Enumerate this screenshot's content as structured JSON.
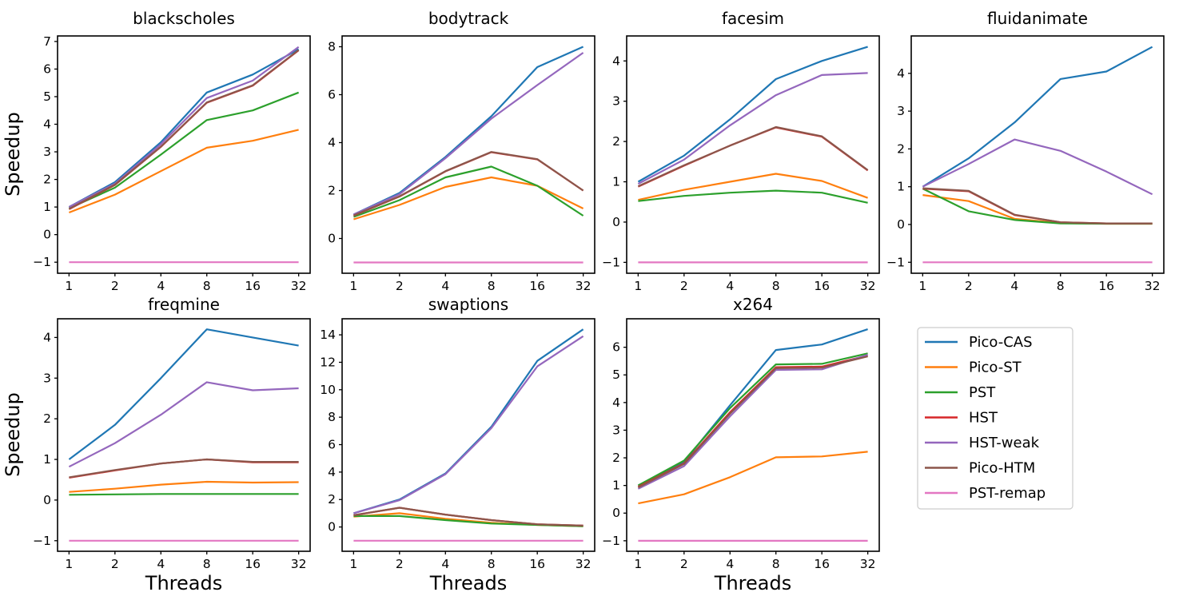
{
  "figure": {
    "ylabel": "Speedup",
    "xlabel": "Threads",
    "background": "#ffffff",
    "text_color": "#000000"
  },
  "legend": {
    "position": "lower-right-cell",
    "entries": [
      {
        "label": "Pico-CAS",
        "color": "#1f77b4"
      },
      {
        "label": "Pico-ST",
        "color": "#ff7f0e"
      },
      {
        "label": "PST",
        "color": "#2ca02c"
      },
      {
        "label": "HST",
        "color": "#d62728"
      },
      {
        "label": "HST-weak",
        "color": "#9467bd"
      },
      {
        "label": "Pico-HTM",
        "color": "#8c564b"
      },
      {
        "label": "PST-remap",
        "color": "#e377c2"
      }
    ]
  },
  "chart_data": {
    "type": "line",
    "x": [
      1,
      2,
      4,
      8,
      16,
      32
    ],
    "xscale": "log2",
    "xlabel": "Threads",
    "ylabel": "Speedup",
    "grid": false,
    "series_names": [
      "Pico-CAS",
      "Pico-ST",
      "PST",
      "HST",
      "HST-weak",
      "Pico-HTM",
      "PST-remap"
    ],
    "charts": [
      {
        "title": "blackscholes",
        "ylim": [
          -1.4,
          7.2
        ],
        "yticks": [
          -1,
          0,
          1,
          2,
          3,
          4,
          5,
          6,
          7
        ],
        "series": [
          [
            1.0,
            1.9,
            3.35,
            5.15,
            5.8,
            6.72
          ],
          [
            0.8,
            1.45,
            2.3,
            3.15,
            3.4,
            3.8
          ],
          [
            0.95,
            1.7,
            2.9,
            4.15,
            4.5,
            5.15
          ],
          [
            0.92,
            1.8,
            3.18,
            4.78,
            5.4,
            6.68
          ],
          [
            1.0,
            1.85,
            3.28,
            4.95,
            5.58,
            6.8
          ],
          [
            0.93,
            1.81,
            3.19,
            4.79,
            5.41,
            6.69
          ],
          [
            -1,
            -1,
            -1,
            -1,
            -1,
            -1
          ]
        ]
      },
      {
        "title": "bodytrack",
        "ylim": [
          -1.45,
          8.45
        ],
        "yticks": [
          0,
          2,
          4,
          6,
          8
        ],
        "series": [
          [
            1.0,
            1.9,
            3.4,
            5.1,
            7.15,
            8.0
          ],
          [
            0.8,
            1.4,
            2.15,
            2.55,
            2.2,
            1.25
          ],
          [
            0.9,
            1.6,
            2.55,
            3.0,
            2.2,
            0.95
          ],
          [
            0.95,
            1.75,
            2.8,
            3.6,
            3.3,
            2.0
          ],
          [
            1.0,
            1.85,
            3.35,
            5.0,
            6.4,
            7.75
          ],
          [
            0.96,
            1.76,
            2.81,
            3.61,
            3.31,
            2.0
          ],
          [
            -1,
            -1,
            -1,
            -1,
            -1,
            -1
          ]
        ]
      },
      {
        "title": "facesim",
        "ylim": [
          -1.27,
          4.62
        ],
        "yticks": [
          -1,
          0,
          1,
          2,
          3,
          4
        ],
        "series": [
          [
            1.0,
            1.65,
            2.55,
            3.55,
            4.0,
            4.35
          ],
          [
            0.55,
            0.8,
            1.0,
            1.2,
            1.02,
            0.6
          ],
          [
            0.52,
            0.65,
            0.73,
            0.78,
            0.73,
            0.48
          ],
          [
            0.88,
            1.4,
            1.9,
            2.35,
            2.12,
            1.28
          ],
          [
            0.95,
            1.55,
            2.4,
            3.15,
            3.65,
            3.7
          ],
          [
            0.89,
            1.41,
            1.9,
            2.36,
            2.13,
            1.29
          ],
          [
            -1,
            -1,
            -1,
            -1,
            -1,
            -1
          ]
        ]
      },
      {
        "title": "fluidanimate",
        "ylim": [
          -1.29,
          4.99
        ],
        "yticks": [
          -1,
          0,
          1,
          2,
          3,
          4
        ],
        "series": [
          [
            1.0,
            1.75,
            2.7,
            3.85,
            4.05,
            4.7
          ],
          [
            0.78,
            0.62,
            0.15,
            0.04,
            0.02,
            0.02
          ],
          [
            0.95,
            0.35,
            0.12,
            0.03,
            0.02,
            0.02
          ],
          [
            0.95,
            0.88,
            0.25,
            0.06,
            0.03,
            0.03
          ],
          [
            1.0,
            1.6,
            2.25,
            1.95,
            1.4,
            0.8
          ],
          [
            0.96,
            0.89,
            0.26,
            0.06,
            0.03,
            0.03
          ],
          [
            -1,
            -1,
            -1,
            -1,
            -1,
            -1
          ]
        ]
      },
      {
        "title": "freqmine",
        "ylim": [
          -1.26,
          4.46
        ],
        "yticks": [
          -1,
          0,
          1,
          2,
          3,
          4
        ],
        "series": [
          [
            1.0,
            1.85,
            3.0,
            4.2,
            4.0,
            3.8
          ],
          [
            0.2,
            0.28,
            0.38,
            0.45,
            0.43,
            0.44
          ],
          [
            0.13,
            0.14,
            0.15,
            0.15,
            0.15,
            0.15
          ],
          [
            0.55,
            0.73,
            0.9,
            1.0,
            0.93,
            0.93
          ],
          [
            0.82,
            1.4,
            2.1,
            2.9,
            2.7,
            2.75
          ],
          [
            0.56,
            0.74,
            0.9,
            1.0,
            0.94,
            0.94
          ],
          [
            -1,
            -1,
            -1,
            -1,
            -1,
            -1
          ]
        ]
      },
      {
        "title": "swaptions",
        "ylim": [
          -1.77,
          15.17
        ],
        "yticks": [
          0,
          2,
          4,
          6,
          8,
          10,
          12,
          14
        ],
        "series": [
          [
            1.0,
            2.0,
            3.9,
            7.3,
            12.1,
            14.4
          ],
          [
            0.75,
            1.0,
            0.6,
            0.3,
            0.15,
            0.05
          ],
          [
            0.8,
            0.8,
            0.5,
            0.25,
            0.15,
            0.05
          ],
          [
            0.85,
            1.4,
            0.9,
            0.5,
            0.2,
            0.1
          ],
          [
            1.0,
            1.95,
            3.85,
            7.2,
            11.7,
            13.9
          ],
          [
            0.86,
            1.4,
            0.9,
            0.5,
            0.2,
            0.1
          ],
          [
            -1,
            -1,
            -1,
            -1,
            -1,
            -1
          ]
        ]
      },
      {
        "title": "x264",
        "ylim": [
          -1.38,
          7.03
        ],
        "yticks": [
          -1,
          0,
          1,
          2,
          3,
          4,
          5,
          6
        ],
        "series": [
          [
            1.0,
            1.85,
            3.9,
            5.9,
            6.1,
            6.65
          ],
          [
            0.35,
            0.68,
            1.3,
            2.02,
            2.05,
            2.22
          ],
          [
            1.0,
            1.9,
            3.8,
            5.38,
            5.4,
            5.78
          ],
          [
            0.95,
            1.8,
            3.65,
            5.28,
            5.3,
            5.7
          ],
          [
            0.88,
            1.7,
            3.5,
            5.18,
            5.2,
            5.73
          ],
          [
            0.93,
            1.78,
            3.6,
            5.24,
            5.26,
            5.67
          ],
          [
            -1,
            -1,
            -1,
            -1,
            -1,
            -1
          ]
        ]
      }
    ]
  }
}
